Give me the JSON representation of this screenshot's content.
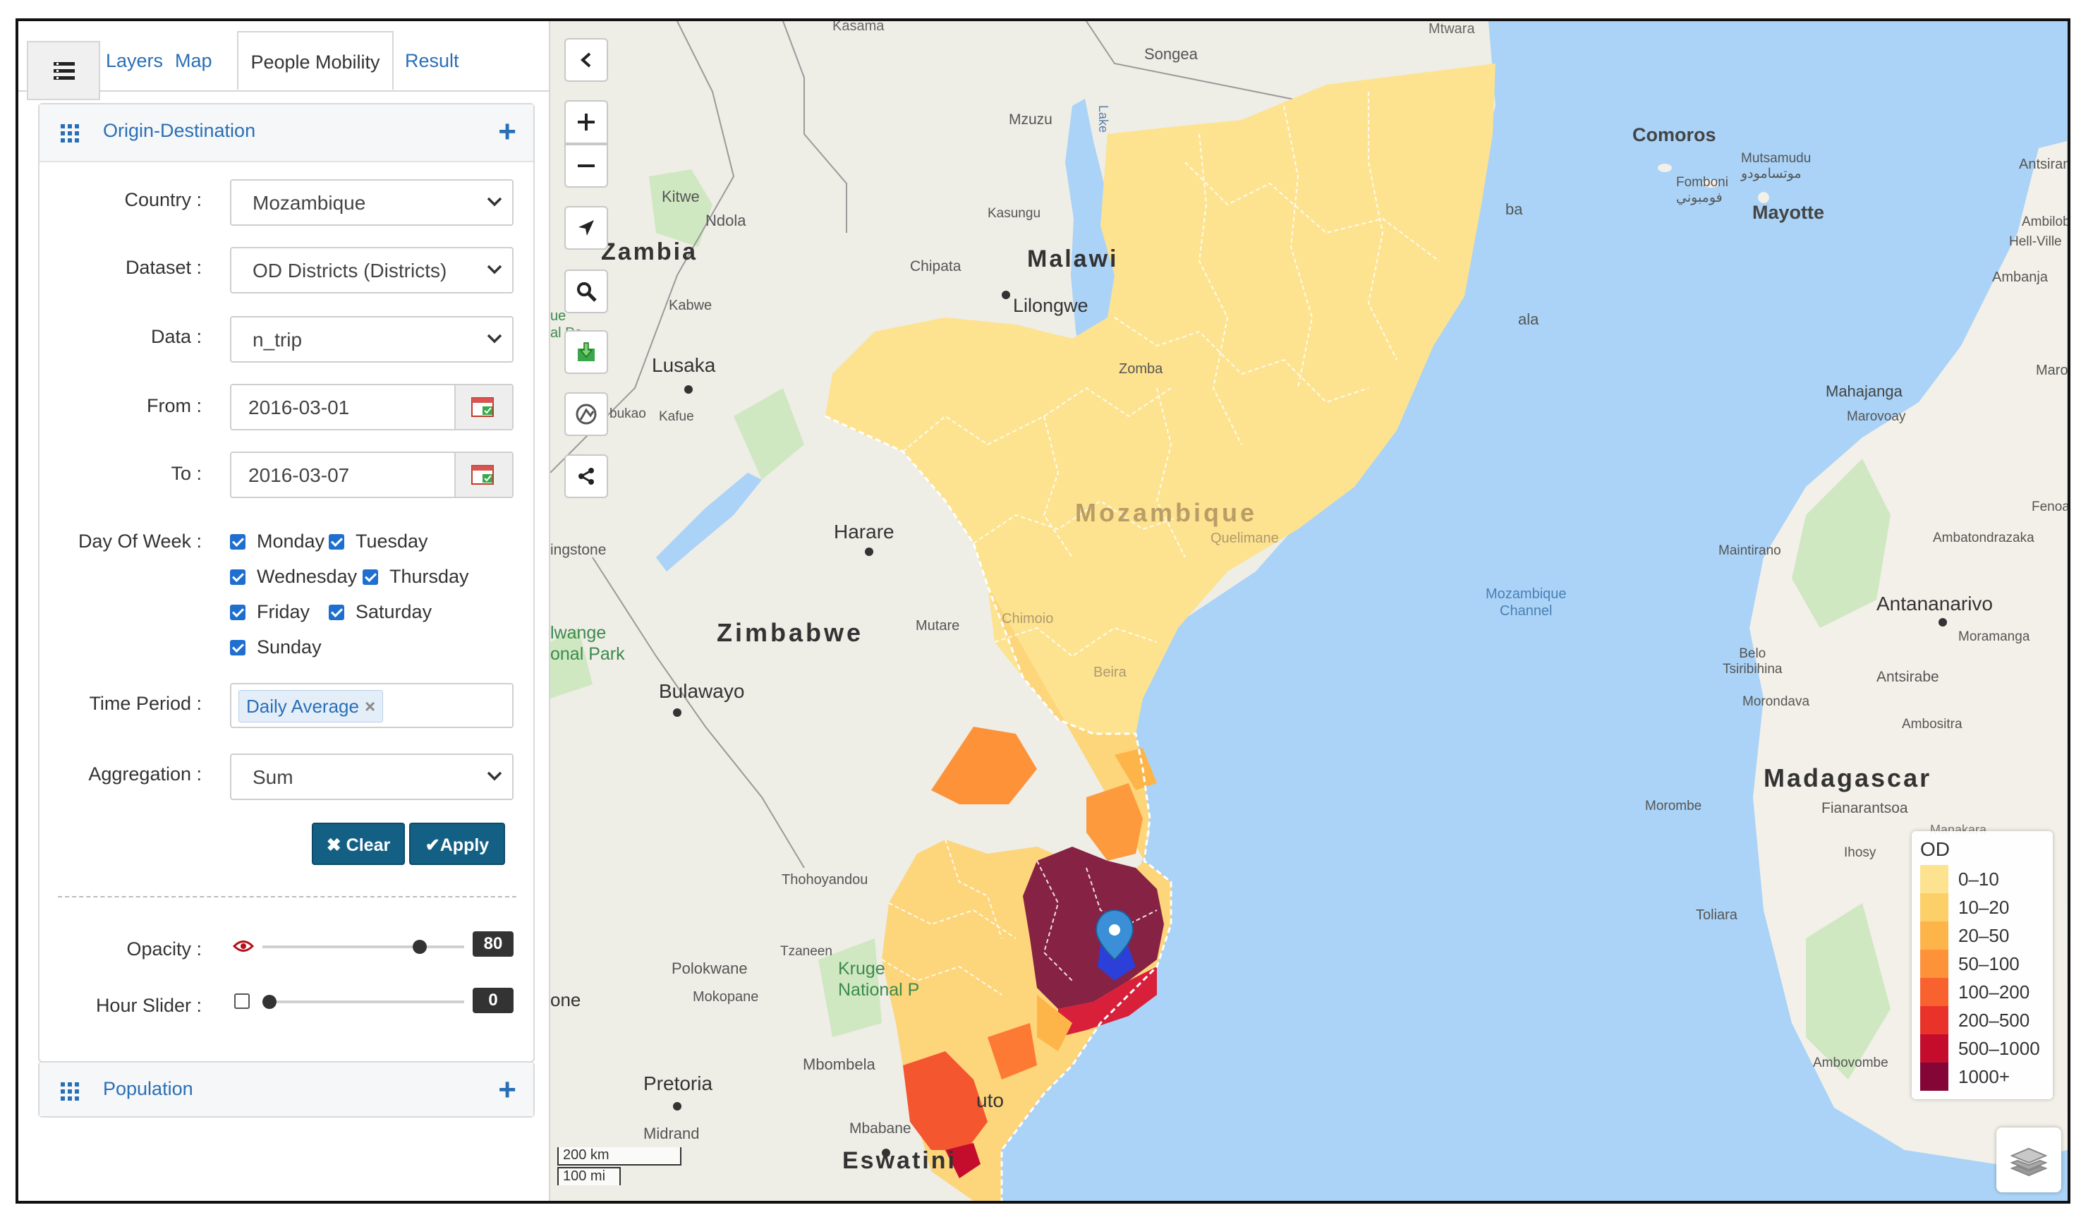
{
  "tabs": {
    "layers": "Layers",
    "map": "Map",
    "people_mobility": "People Mobility",
    "result": "Result"
  },
  "od_section": {
    "title": "Origin-Destination",
    "country": {
      "label": "Country :",
      "value": "Mozambique"
    },
    "dataset": {
      "label": "Dataset :",
      "value": "OD Districts (Districts)"
    },
    "data": {
      "label": "Data :",
      "value": "n_trip"
    },
    "from": {
      "label": "From :",
      "value": "2016-03-01"
    },
    "to": {
      "label": "To :",
      "value": "2016-03-07"
    },
    "day_of_week": {
      "label": "Day Of Week :",
      "days": [
        {
          "name": "Monday",
          "checked": true
        },
        {
          "name": "Tuesday",
          "checked": true
        },
        {
          "name": "Wednesday",
          "checked": true
        },
        {
          "name": "Thursday",
          "checked": true
        },
        {
          "name": "Friday",
          "checked": true
        },
        {
          "name": "Saturday",
          "checked": true
        },
        {
          "name": "Sunday",
          "checked": true
        }
      ]
    },
    "time_period": {
      "label": "Time Period :",
      "chip": "Daily Average",
      "chip_remove": "×"
    },
    "aggregation": {
      "label": "Aggregation :",
      "value": "Sum"
    },
    "clear_label": "Clear",
    "apply_label": "Apply",
    "opacity": {
      "label": "Opacity :",
      "value": "80",
      "level": 0.8
    },
    "hour_slider": {
      "label": "Hour Slider :",
      "value": "0",
      "checked": false
    }
  },
  "population_section": {
    "title": "Population"
  },
  "map": {
    "place_labels": {
      "kasama": "Kasama",
      "mtwara": "Mtwara",
      "songea": "Songea",
      "mzuzu": "Mzuzu",
      "lake": "Lake",
      "kitwe": "Kitwe",
      "ndola": "Ndola",
      "zambia": "Zambia",
      "kasungu": "Kasungu",
      "malawi": "Malawi",
      "chipata": "Chipata",
      "lilongwe": "Lilongwe",
      "kabwe": "Kabwe",
      "lusaka": "Lusaka",
      "zomba": "Zomba",
      "kafue": "Kafue",
      "bukao": "bukao",
      "ue_al_pa": "ue\nal Pa",
      "mozambique": "Mozambique",
      "quelimane": "Quelimane",
      "harare": "Harare",
      "livingstone": "ingstone",
      "zimbabwe": "Zimbabwe",
      "mutare": "Mutare",
      "chimoio": "Chimoio",
      "beira": "Beira",
      "hwange": "lwange\nonal Park",
      "bulawayo": "Bulawayo",
      "thohoyandou": "Thohoyandou",
      "tzaneen": "Tzaneen",
      "polokwane": "Polokwane",
      "mokopane": "Mokopane",
      "kruger": "Kruge\nNational P",
      "one": "one",
      "mbombela": "Mbombela",
      "pretoria": "Pretoria",
      "midrand": "Midrand",
      "maputo": "uto",
      "mbabane": "Mbabane",
      "eswatini": "Eswatini",
      "comoros": "Comoros",
      "fomboni": "Fomboni\nفومبوني",
      "mutsamudu": "Mutsamudu\nموتسامودو",
      "mayotte": "Mayotte",
      "antsiranana": "Antsiran",
      "ambilobe": "Ambilobe",
      "hell_ville": "Hell-Ville",
      "ambanja": "Ambanja",
      "pemba": "ba",
      "nacala": "ala",
      "mahajanga": "Mahajanga",
      "marovoay": "Marovoay",
      "maro": "Maro",
      "fenoa": "Fenoa",
      "ambatondrazaka": "Ambatondrazaka",
      "maintirano": "Maintirano",
      "moz_channel": "Mozambique\nChannel",
      "antananarivo": "Antananarivo",
      "moramanga": "Moramanga",
      "belo": "Belo\nTsiribihina",
      "antsirabe": "Antsirabe",
      "morondava": "Morondava",
      "ambositra": "Ambositra",
      "madagascar": "Madagascar",
      "morombe": "Morombe",
      "fianarantsoa": "Fianarantsoa",
      "ihosy": "Ihosy",
      "toliara": "Toliara",
      "ambovombe": "Ambovombe",
      "manakara": "Manakara"
    },
    "scale": {
      "km": "200 km",
      "mi": "100 mi"
    },
    "legend": {
      "title": "OD",
      "items": [
        {
          "label": "0–10",
          "color": "#fde38f"
        },
        {
          "label": "10–20",
          "color": "#fdcf69"
        },
        {
          "label": "20–50",
          "color": "#fdb54a"
        },
        {
          "label": "50–100",
          "color": "#fd9239"
        },
        {
          "label": "100–200",
          "color": "#f8622f"
        },
        {
          "label": "200–500",
          "color": "#e9322a"
        },
        {
          "label": "500–1000",
          "color": "#c40d2d"
        },
        {
          "label": "1000+",
          "color": "#840637"
        }
      ]
    }
  }
}
